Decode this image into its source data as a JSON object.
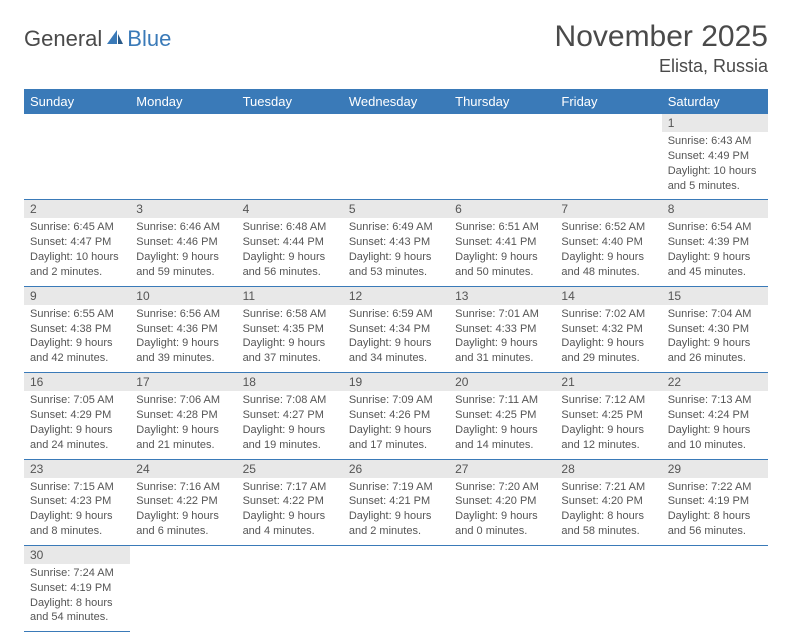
{
  "brand": {
    "part1": "General",
    "part2": "Blue"
  },
  "title": "November 2025",
  "location": "Elista, Russia",
  "colors": {
    "header_bg": "#3a7ab8",
    "header_fg": "#ffffff",
    "daynum_bg": "#e8e8e8",
    "text": "#555555",
    "row_border": "#3a7ab8"
  },
  "weekdays": [
    "Sunday",
    "Monday",
    "Tuesday",
    "Wednesday",
    "Thursday",
    "Friday",
    "Saturday"
  ],
  "weeks": [
    [
      null,
      null,
      null,
      null,
      null,
      null,
      {
        "n": "1",
        "sr": "Sunrise: 6:43 AM",
        "ss": "Sunset: 4:49 PM",
        "dl": "Daylight: 10 hours and 5 minutes."
      }
    ],
    [
      {
        "n": "2",
        "sr": "Sunrise: 6:45 AM",
        "ss": "Sunset: 4:47 PM",
        "dl": "Daylight: 10 hours and 2 minutes."
      },
      {
        "n": "3",
        "sr": "Sunrise: 6:46 AM",
        "ss": "Sunset: 4:46 PM",
        "dl": "Daylight: 9 hours and 59 minutes."
      },
      {
        "n": "4",
        "sr": "Sunrise: 6:48 AM",
        "ss": "Sunset: 4:44 PM",
        "dl": "Daylight: 9 hours and 56 minutes."
      },
      {
        "n": "5",
        "sr": "Sunrise: 6:49 AM",
        "ss": "Sunset: 4:43 PM",
        "dl": "Daylight: 9 hours and 53 minutes."
      },
      {
        "n": "6",
        "sr": "Sunrise: 6:51 AM",
        "ss": "Sunset: 4:41 PM",
        "dl": "Daylight: 9 hours and 50 minutes."
      },
      {
        "n": "7",
        "sr": "Sunrise: 6:52 AM",
        "ss": "Sunset: 4:40 PM",
        "dl": "Daylight: 9 hours and 48 minutes."
      },
      {
        "n": "8",
        "sr": "Sunrise: 6:54 AM",
        "ss": "Sunset: 4:39 PM",
        "dl": "Daylight: 9 hours and 45 minutes."
      }
    ],
    [
      {
        "n": "9",
        "sr": "Sunrise: 6:55 AM",
        "ss": "Sunset: 4:38 PM",
        "dl": "Daylight: 9 hours and 42 minutes."
      },
      {
        "n": "10",
        "sr": "Sunrise: 6:56 AM",
        "ss": "Sunset: 4:36 PM",
        "dl": "Daylight: 9 hours and 39 minutes."
      },
      {
        "n": "11",
        "sr": "Sunrise: 6:58 AM",
        "ss": "Sunset: 4:35 PM",
        "dl": "Daylight: 9 hours and 37 minutes."
      },
      {
        "n": "12",
        "sr": "Sunrise: 6:59 AM",
        "ss": "Sunset: 4:34 PM",
        "dl": "Daylight: 9 hours and 34 minutes."
      },
      {
        "n": "13",
        "sr": "Sunrise: 7:01 AM",
        "ss": "Sunset: 4:33 PM",
        "dl": "Daylight: 9 hours and 31 minutes."
      },
      {
        "n": "14",
        "sr": "Sunrise: 7:02 AM",
        "ss": "Sunset: 4:32 PM",
        "dl": "Daylight: 9 hours and 29 minutes."
      },
      {
        "n": "15",
        "sr": "Sunrise: 7:04 AM",
        "ss": "Sunset: 4:30 PM",
        "dl": "Daylight: 9 hours and 26 minutes."
      }
    ],
    [
      {
        "n": "16",
        "sr": "Sunrise: 7:05 AM",
        "ss": "Sunset: 4:29 PM",
        "dl": "Daylight: 9 hours and 24 minutes."
      },
      {
        "n": "17",
        "sr": "Sunrise: 7:06 AM",
        "ss": "Sunset: 4:28 PM",
        "dl": "Daylight: 9 hours and 21 minutes."
      },
      {
        "n": "18",
        "sr": "Sunrise: 7:08 AM",
        "ss": "Sunset: 4:27 PM",
        "dl": "Daylight: 9 hours and 19 minutes."
      },
      {
        "n": "19",
        "sr": "Sunrise: 7:09 AM",
        "ss": "Sunset: 4:26 PM",
        "dl": "Daylight: 9 hours and 17 minutes."
      },
      {
        "n": "20",
        "sr": "Sunrise: 7:11 AM",
        "ss": "Sunset: 4:25 PM",
        "dl": "Daylight: 9 hours and 14 minutes."
      },
      {
        "n": "21",
        "sr": "Sunrise: 7:12 AM",
        "ss": "Sunset: 4:25 PM",
        "dl": "Daylight: 9 hours and 12 minutes."
      },
      {
        "n": "22",
        "sr": "Sunrise: 7:13 AM",
        "ss": "Sunset: 4:24 PM",
        "dl": "Daylight: 9 hours and 10 minutes."
      }
    ],
    [
      {
        "n": "23",
        "sr": "Sunrise: 7:15 AM",
        "ss": "Sunset: 4:23 PM",
        "dl": "Daylight: 9 hours and 8 minutes."
      },
      {
        "n": "24",
        "sr": "Sunrise: 7:16 AM",
        "ss": "Sunset: 4:22 PM",
        "dl": "Daylight: 9 hours and 6 minutes."
      },
      {
        "n": "25",
        "sr": "Sunrise: 7:17 AM",
        "ss": "Sunset: 4:22 PM",
        "dl": "Daylight: 9 hours and 4 minutes."
      },
      {
        "n": "26",
        "sr": "Sunrise: 7:19 AM",
        "ss": "Sunset: 4:21 PM",
        "dl": "Daylight: 9 hours and 2 minutes."
      },
      {
        "n": "27",
        "sr": "Sunrise: 7:20 AM",
        "ss": "Sunset: 4:20 PM",
        "dl": "Daylight: 9 hours and 0 minutes."
      },
      {
        "n": "28",
        "sr": "Sunrise: 7:21 AM",
        "ss": "Sunset: 4:20 PM",
        "dl": "Daylight: 8 hours and 58 minutes."
      },
      {
        "n": "29",
        "sr": "Sunrise: 7:22 AM",
        "ss": "Sunset: 4:19 PM",
        "dl": "Daylight: 8 hours and 56 minutes."
      }
    ],
    [
      {
        "n": "30",
        "sr": "Sunrise: 7:24 AM",
        "ss": "Sunset: 4:19 PM",
        "dl": "Daylight: 8 hours and 54 minutes."
      },
      null,
      null,
      null,
      null,
      null,
      null
    ]
  ]
}
